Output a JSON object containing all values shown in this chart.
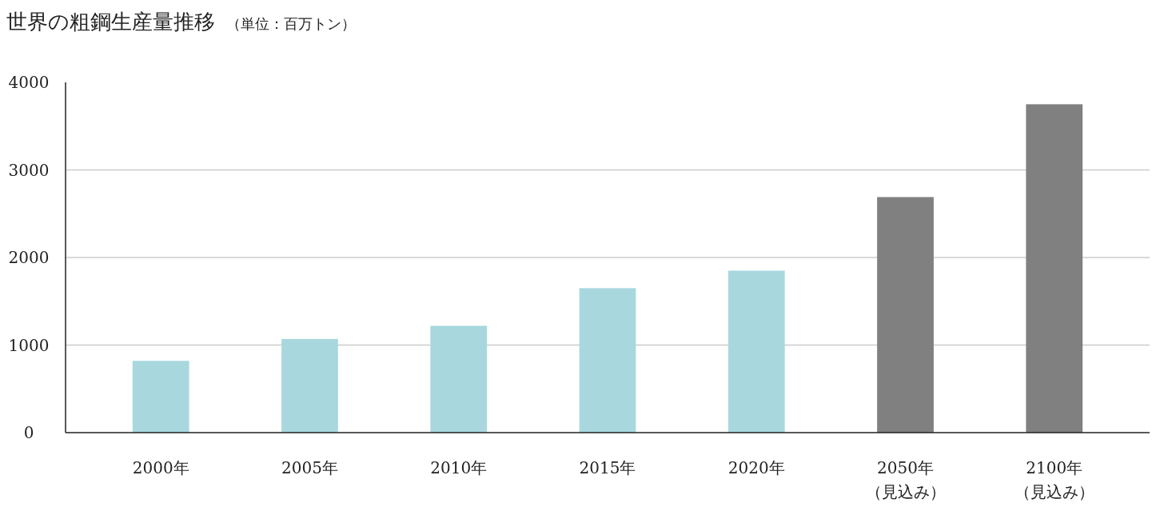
{
  "chart_data": {
    "type": "bar",
    "title": "世界の粗鋼生産量推移",
    "subtitle": "（単位：百万トン）",
    "categories": [
      "2000年",
      "2005年",
      "2010年",
      "2015年",
      "2020年",
      "2050年（見込み）",
      "2100年（見込み）"
    ],
    "values": [
      820,
      1070,
      1220,
      1650,
      1850,
      2690,
      3750
    ],
    "colors": [
      "#a8d8de",
      "#a8d8de",
      "#a8d8de",
      "#a8d8de",
      "#a8d8de",
      "#808080",
      "#808080"
    ],
    "ylim": [
      0,
      4000
    ],
    "yticks": [
      0,
      1000,
      2000,
      3000,
      4000
    ],
    "grid": "y"
  }
}
